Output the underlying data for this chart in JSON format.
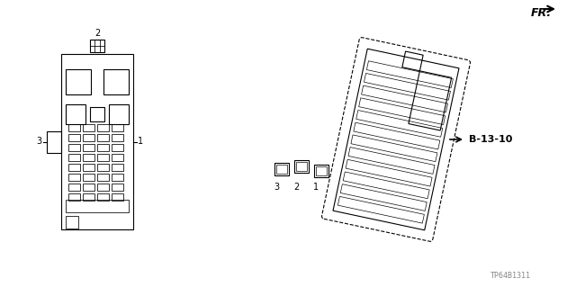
{
  "bg_color": "#ffffff",
  "line_color": "#000000",
  "title": "",
  "fr_label": "FR.",
  "b_label": "B-13-10",
  "part_num": "TP64B1311",
  "labels": {
    "left_1": "1",
    "left_2": "2",
    "left_3": "3",
    "right_1": "1",
    "right_2": "2",
    "right_3": "3"
  }
}
